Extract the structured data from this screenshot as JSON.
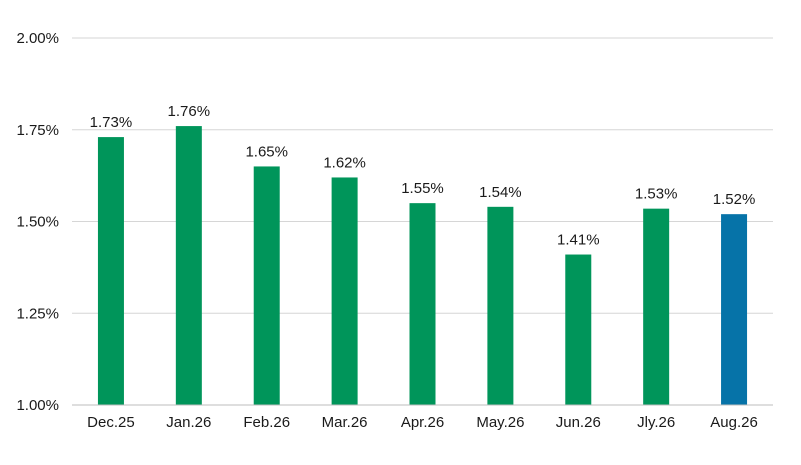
{
  "chart_data": {
    "type": "bar",
    "categories": [
      "Dec.25",
      "Jan.26",
      "Feb.26",
      "Mar.26",
      "Apr.26",
      "May.26",
      "Jun.26",
      "Jly.26",
      "Aug.26"
    ],
    "values": [
      1.73,
      1.76,
      1.65,
      1.62,
      1.55,
      1.54,
      1.41,
      1.535,
      1.52
    ],
    "data_labels": [
      "1.73%",
      "1.76%",
      "1.65%",
      "1.62%",
      "1.55%",
      "1.54%",
      "1.41%",
      "1.53%",
      "1.52%"
    ],
    "title": "",
    "xlabel": "",
    "ylabel": "",
    "ylim": [
      1.0,
      2.0
    ],
    "yticks": [
      1.0,
      1.25,
      1.5,
      1.75,
      2.0
    ],
    "ytick_labels": [
      "1.00%",
      "1.25%",
      "1.50%",
      "1.75%",
      "2.00%"
    ],
    "grid": true,
    "colors": {
      "default": "#00955a",
      "highlight": "#0673a8"
    },
    "highlight_index": 8
  }
}
